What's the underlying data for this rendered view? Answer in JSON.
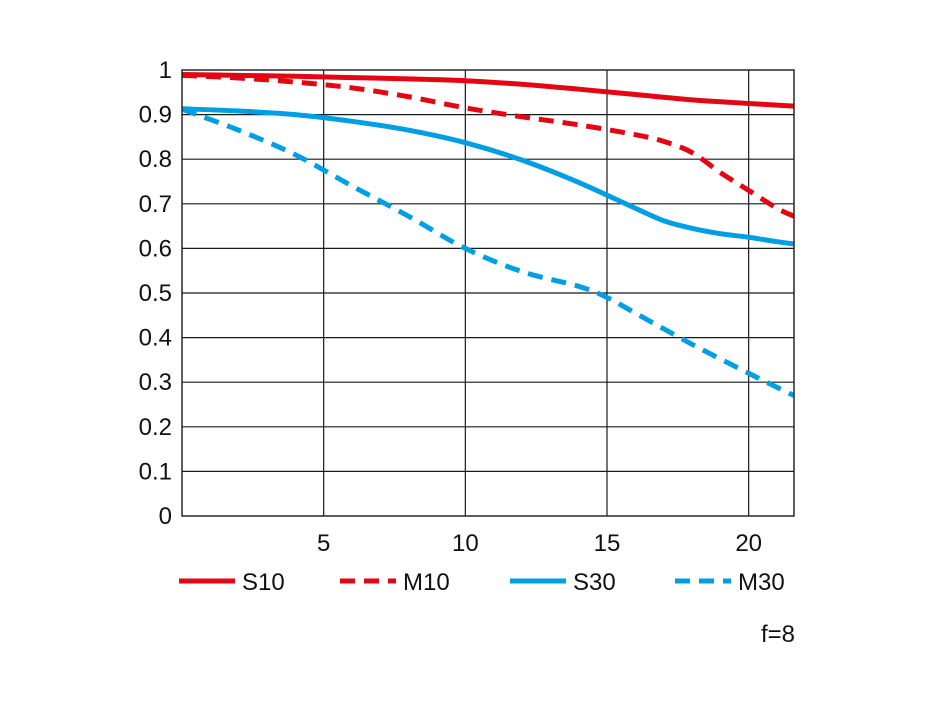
{
  "chart_data": {
    "type": "line",
    "title": "",
    "xlabel": "",
    "ylabel": "",
    "xlim": [
      0,
      21.6
    ],
    "ylim": [
      0,
      1
    ],
    "grid": true,
    "legend_position": "bottom",
    "x_ticks": [
      5,
      10,
      15,
      20
    ],
    "x_tick_labels": [
      "5",
      "10",
      "15",
      "20"
    ],
    "y_ticks": [
      0,
      0.1,
      0.2,
      0.3,
      0.4,
      0.5,
      0.6,
      0.7,
      0.8,
      0.9,
      1
    ],
    "y_tick_labels": [
      "0",
      "0.1",
      "0.2",
      "0.3",
      "0.4",
      "0.5",
      "0.6",
      "0.7",
      "0.8",
      "0.9",
      "1"
    ],
    "annotation": "f=8",
    "series": [
      {
        "name": "S10",
        "color": "#e30613",
        "dash": "solid",
        "x": [
          0,
          2,
          4,
          6,
          8,
          10,
          12,
          14,
          16,
          18,
          20,
          21.6
        ],
        "y": [
          0.99,
          0.988,
          0.986,
          0.983,
          0.98,
          0.976,
          0.968,
          0.957,
          0.945,
          0.933,
          0.925,
          0.919
        ]
      },
      {
        "name": "M10",
        "color": "#e30613",
        "dash": "dashed",
        "x": [
          0,
          2,
          4,
          6,
          8,
          10,
          12,
          14,
          16,
          17,
          18,
          19,
          20,
          21,
          21.6
        ],
        "y": [
          0.988,
          0.982,
          0.973,
          0.96,
          0.94,
          0.915,
          0.895,
          0.877,
          0.855,
          0.84,
          0.815,
          0.77,
          0.73,
          0.69,
          0.672
        ]
      },
      {
        "name": "S30",
        "color": "#009fe3",
        "dash": "solid",
        "x": [
          0,
          2,
          4,
          6,
          8,
          10,
          12,
          14,
          16,
          17,
          18,
          19,
          20,
          21,
          21.6
        ],
        "y": [
          0.913,
          0.908,
          0.9,
          0.885,
          0.865,
          0.837,
          0.798,
          0.748,
          0.69,
          0.662,
          0.645,
          0.633,
          0.625,
          0.615,
          0.61
        ]
      },
      {
        "name": "M30",
        "color": "#009fe3",
        "dash": "dashed",
        "x": [
          0,
          2,
          4,
          6,
          8,
          10,
          12,
          14,
          15,
          16,
          18,
          20,
          21.6
        ],
        "y": [
          0.912,
          0.865,
          0.81,
          0.74,
          0.672,
          0.6,
          0.548,
          0.515,
          0.49,
          0.455,
          0.385,
          0.32,
          0.27
        ]
      }
    ]
  }
}
